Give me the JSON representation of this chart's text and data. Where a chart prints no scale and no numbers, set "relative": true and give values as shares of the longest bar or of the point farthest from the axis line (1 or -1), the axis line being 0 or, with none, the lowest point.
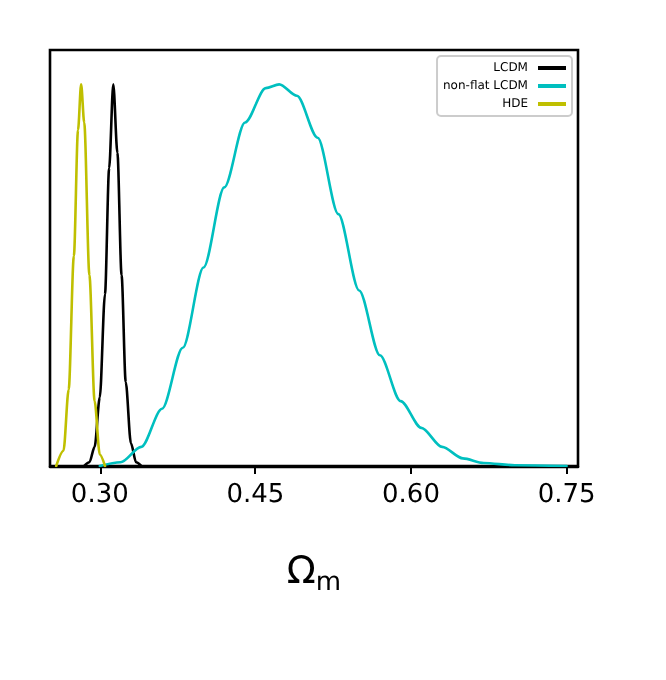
{
  "chart_data": {
    "type": "line",
    "relative": true,
    "xlabel": "Ω$_{m}$",
    "xlim": [
      0.252,
      0.761
    ],
    "xticks": [
      {
        "value": 0.3,
        "label": "0.30"
      },
      0.45,
      {
        "value": 0.6,
        "label": "0.60"
      },
      0.75
    ],
    "legend": "top right",
    "marker": "none",
    "line_style": "solid",
    "grid": false,
    "series": [
      {
        "name": "LCDM",
        "color": "#000000",
        "x": [
          0.285,
          0.29,
          0.295,
          0.3,
          0.305,
          0.309,
          0.313,
          0.317,
          0.321,
          0.325,
          0.33,
          0.335,
          0.34
        ],
        "values": [
          0,
          0.01,
          0.05,
          0.18,
          0.45,
          0.78,
          1,
          0.82,
          0.5,
          0.22,
          0.06,
          0.01,
          0
        ]
      },
      {
        "name": "non-flat LCDM",
        "color": "#00bfbf",
        "x": [
          0.3,
          0.32,
          0.34,
          0.36,
          0.38,
          0.4,
          0.42,
          0.44,
          0.46,
          0.473,
          0.49,
          0.51,
          0.53,
          0.55,
          0.57,
          0.59,
          0.61,
          0.63,
          0.65,
          0.67,
          0.7,
          0.75
        ],
        "values": [
          0,
          0.01,
          0.05,
          0.15,
          0.31,
          0.52,
          0.73,
          0.9,
          0.99,
          1,
          0.97,
          0.86,
          0.66,
          0.46,
          0.29,
          0.17,
          0.1,
          0.05,
          0.02,
          0.008,
          0.002,
          0
        ]
      },
      {
        "name": "HDE",
        "color": "#bfbf00",
        "x": [
          0.258,
          0.265,
          0.27,
          0.275,
          0.279,
          0.282,
          0.285,
          0.29,
          0.295,
          0.3,
          0.305
        ],
        "values": [
          0,
          0.04,
          0.2,
          0.55,
          0.88,
          1,
          0.9,
          0.5,
          0.17,
          0.03,
          0
        ]
      }
    ]
  }
}
